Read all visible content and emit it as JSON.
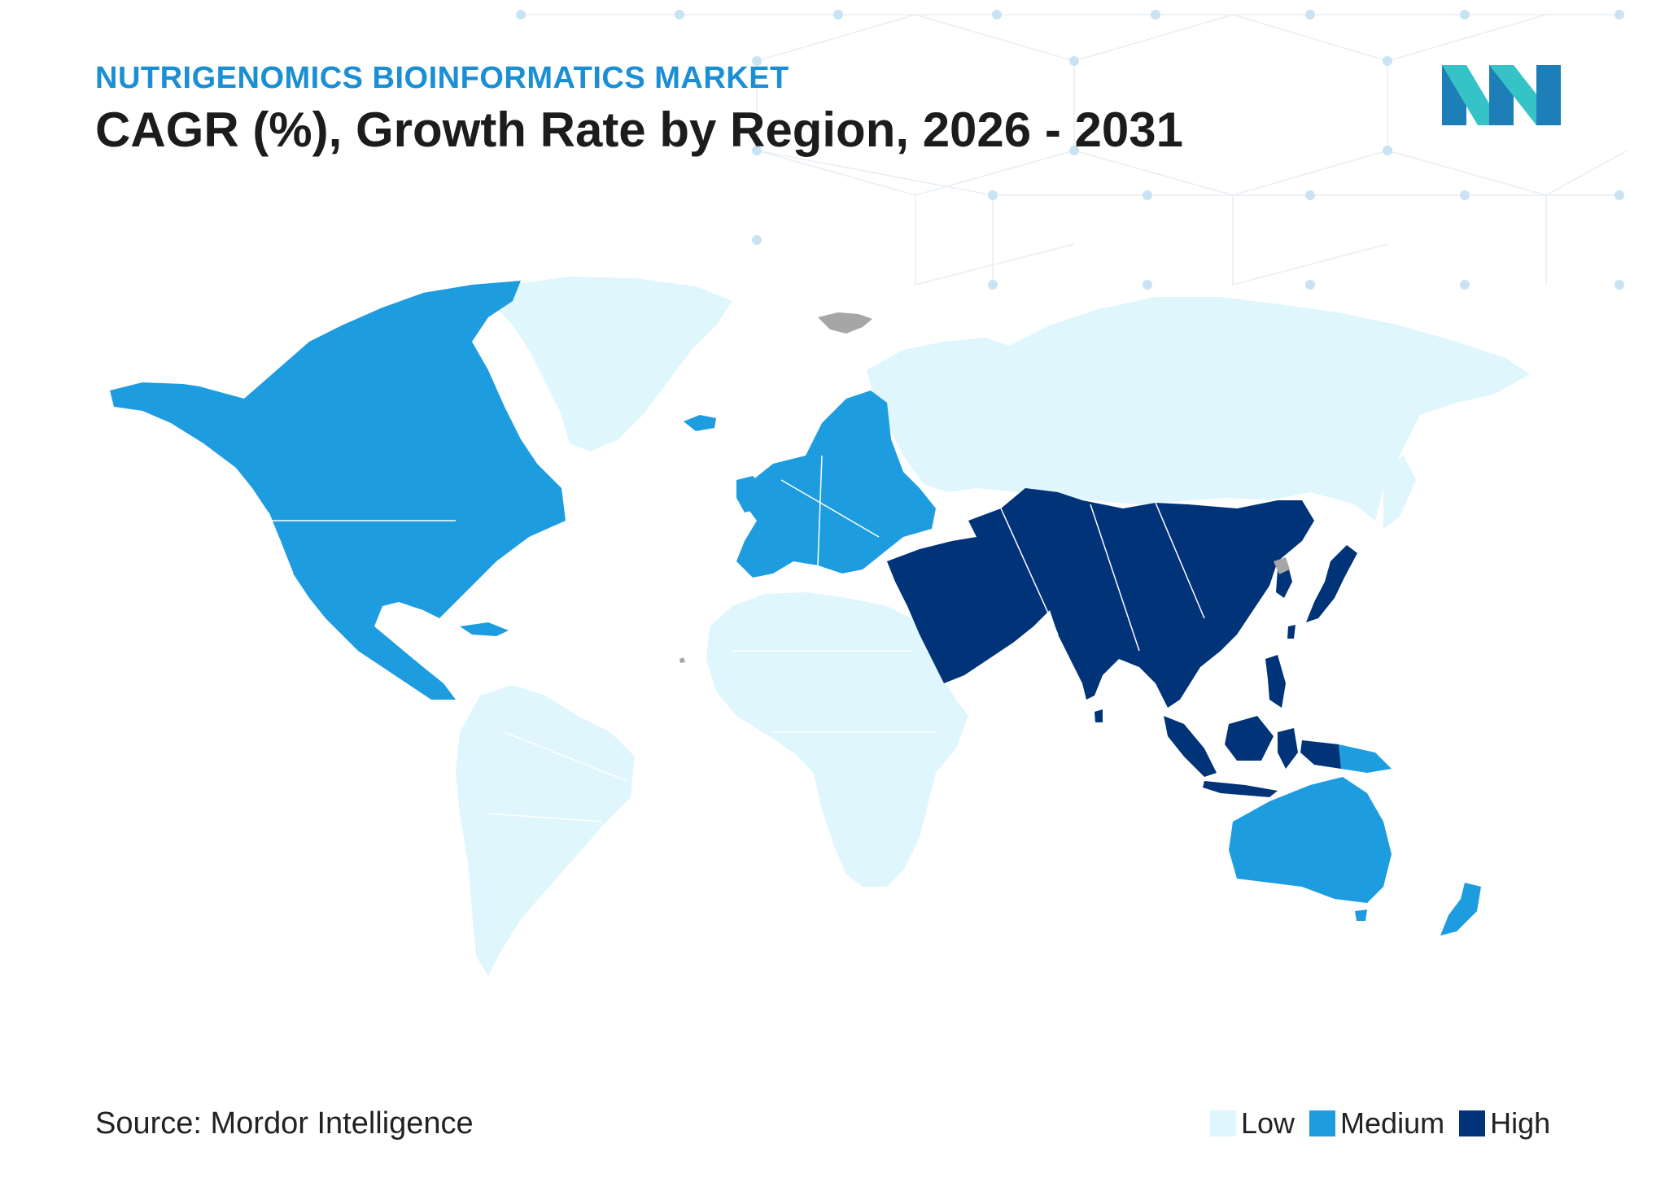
{
  "header": {
    "subtitle": "NUTRIGENOMICS BIOINFORMATICS MARKET",
    "title": "CAGR (%), Growth Rate by Region, 2026 - 2031"
  },
  "source": "Source: Mordor Intelligence",
  "legend": [
    {
      "label": "Low",
      "color": "#dff6fd"
    },
    {
      "label": "Medium",
      "color": "#1e9ce0"
    },
    {
      "label": "High",
      "color": "#003378"
    }
  ],
  "colors": {
    "low": "#dff6fd",
    "medium": "#1e9ce0",
    "high": "#003378",
    "no_data": "#a6a6a6",
    "logo_dark": "#1e7fb8",
    "logo_light": "#35c3c8"
  },
  "regions": [
    {
      "name": "North America",
      "level": "Medium"
    },
    {
      "name": "Europe",
      "level": "Medium"
    },
    {
      "name": "Australia and New Zealand",
      "level": "Medium"
    },
    {
      "name": "Asia",
      "level": "High"
    },
    {
      "name": "Middle East",
      "level": "High"
    },
    {
      "name": "South America",
      "level": "Low"
    },
    {
      "name": "Africa",
      "level": "Low"
    },
    {
      "name": "Russia",
      "level": "Low"
    },
    {
      "name": "Greenland",
      "level": "Low"
    }
  ]
}
